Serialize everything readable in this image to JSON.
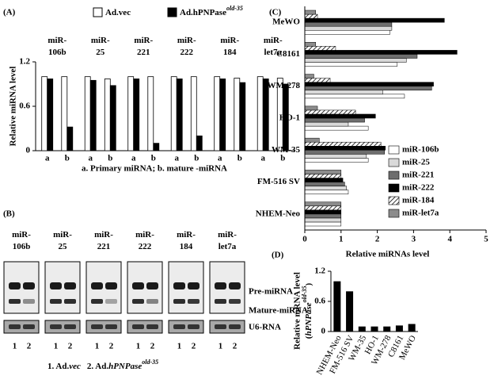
{
  "chart_data": [
    {
      "panel": "(A)",
      "type": "grouped_bar",
      "ylabel": "Relative miRNA level",
      "categories": [
        "miR-106b",
        "miR-25",
        "miR-221",
        "miR-222",
        "miR-184",
        "miR-let7a"
      ],
      "subcategories": [
        "a",
        "b"
      ],
      "caption": "a. Primary miRNA;  b. mature -miRNA",
      "series": [
        {
          "name": "Ad.vec",
          "color": "#ffffff",
          "values": [
            [
              1,
              1
            ],
            [
              1,
              0.97
            ],
            [
              1,
              1
            ],
            [
              1,
              1
            ],
            [
              1,
              0.98
            ],
            [
              1,
              0.98
            ]
          ]
        },
        {
          "name": "Ad.hPNPase",
          "name_superscript": "old-35",
          "color": "#000000",
          "values": [
            [
              0.97,
              0.32
            ],
            [
              0.95,
              0.88
            ],
            [
              0.97,
              0.1
            ],
            [
              0.97,
              0.2
            ],
            [
              0.97,
              0.92
            ],
            [
              0.97,
              0.9
            ]
          ]
        }
      ],
      "ylim": [
        0,
        1.2
      ],
      "yticks": [
        0,
        0.6,
        1.2
      ]
    },
    {
      "panel": "(C)",
      "type": "hbar",
      "xlabel": "Relative miRNAs level",
      "categories": [
        "MeWO",
        "C8161",
        "WM-278",
        "HO-1",
        "WM-35",
        "FM-516 SV",
        "NHEM-Neo"
      ],
      "series": [
        {
          "name": "miR-106b",
          "color": "#ffffff",
          "values": [
            2.35,
            2.55,
            2.75,
            1.75,
            1.75,
            1.2,
            1
          ]
        },
        {
          "name": "miR-25",
          "color": "#d9d9d9",
          "values": [
            2.4,
            2.8,
            2.15,
            1.2,
            1.7,
            1.15,
            1
          ]
        },
        {
          "name": "miR-221",
          "color": "#6e6e6e",
          "values": [
            2.4,
            3.1,
            3.5,
            1.65,
            2.2,
            1.1,
            1
          ]
        },
        {
          "name": "miR-222",
          "color": "#000000",
          "values": [
            3.85,
            4.2,
            3.55,
            1.95,
            2.6,
            1.05,
            1
          ]
        },
        {
          "name": "miR-184",
          "color": "#ffffff",
          "pattern": "diagonal-hatch",
          "values": [
            0.35,
            0.85,
            0.7,
            1.4,
            2.1,
            1.0,
            1
          ]
        },
        {
          "name": "miR-let7a",
          "color": "#8c8c8c",
          "values": [
            0.3,
            0.3,
            0.25,
            0.35,
            0.4,
            1.0,
            1
          ]
        }
      ],
      "xlim": [
        0,
        5
      ],
      "xticks": [
        0,
        1,
        2,
        3,
        4,
        5
      ]
    },
    {
      "panel": "(D)",
      "type": "bar",
      "ylabel": [
        "Relative mRNA level",
        "(",
        "hPNPase",
        "old-35",
        ")"
      ],
      "categories": [
        "NHEM-Neo",
        "FM-516 SV",
        "WM-35",
        "HO-1",
        "WM-278",
        "C8161",
        "MeWO"
      ],
      "values": [
        1.0,
        0.8,
        0.1,
        0.1,
        0.1,
        0.12,
        0.15
      ],
      "color": "#000000",
      "ylim": [
        0,
        1.2
      ],
      "yticks": [
        0,
        0.6,
        1.2
      ]
    }
  ],
  "blot": {
    "panel": "(B)",
    "groups": [
      "miR-106b",
      "miR-25",
      "miR-221",
      "miR-222",
      "miR-184",
      "miR-let7a"
    ],
    "lanes": [
      "1",
      "2"
    ],
    "bands": [
      "Pre-miRNA",
      "Mature-miRNA",
      "U6-RNA"
    ],
    "caption": [
      "1. Ad.",
      "vec",
      "2. Ad.",
      "hPNPase",
      "old-35"
    ]
  }
}
